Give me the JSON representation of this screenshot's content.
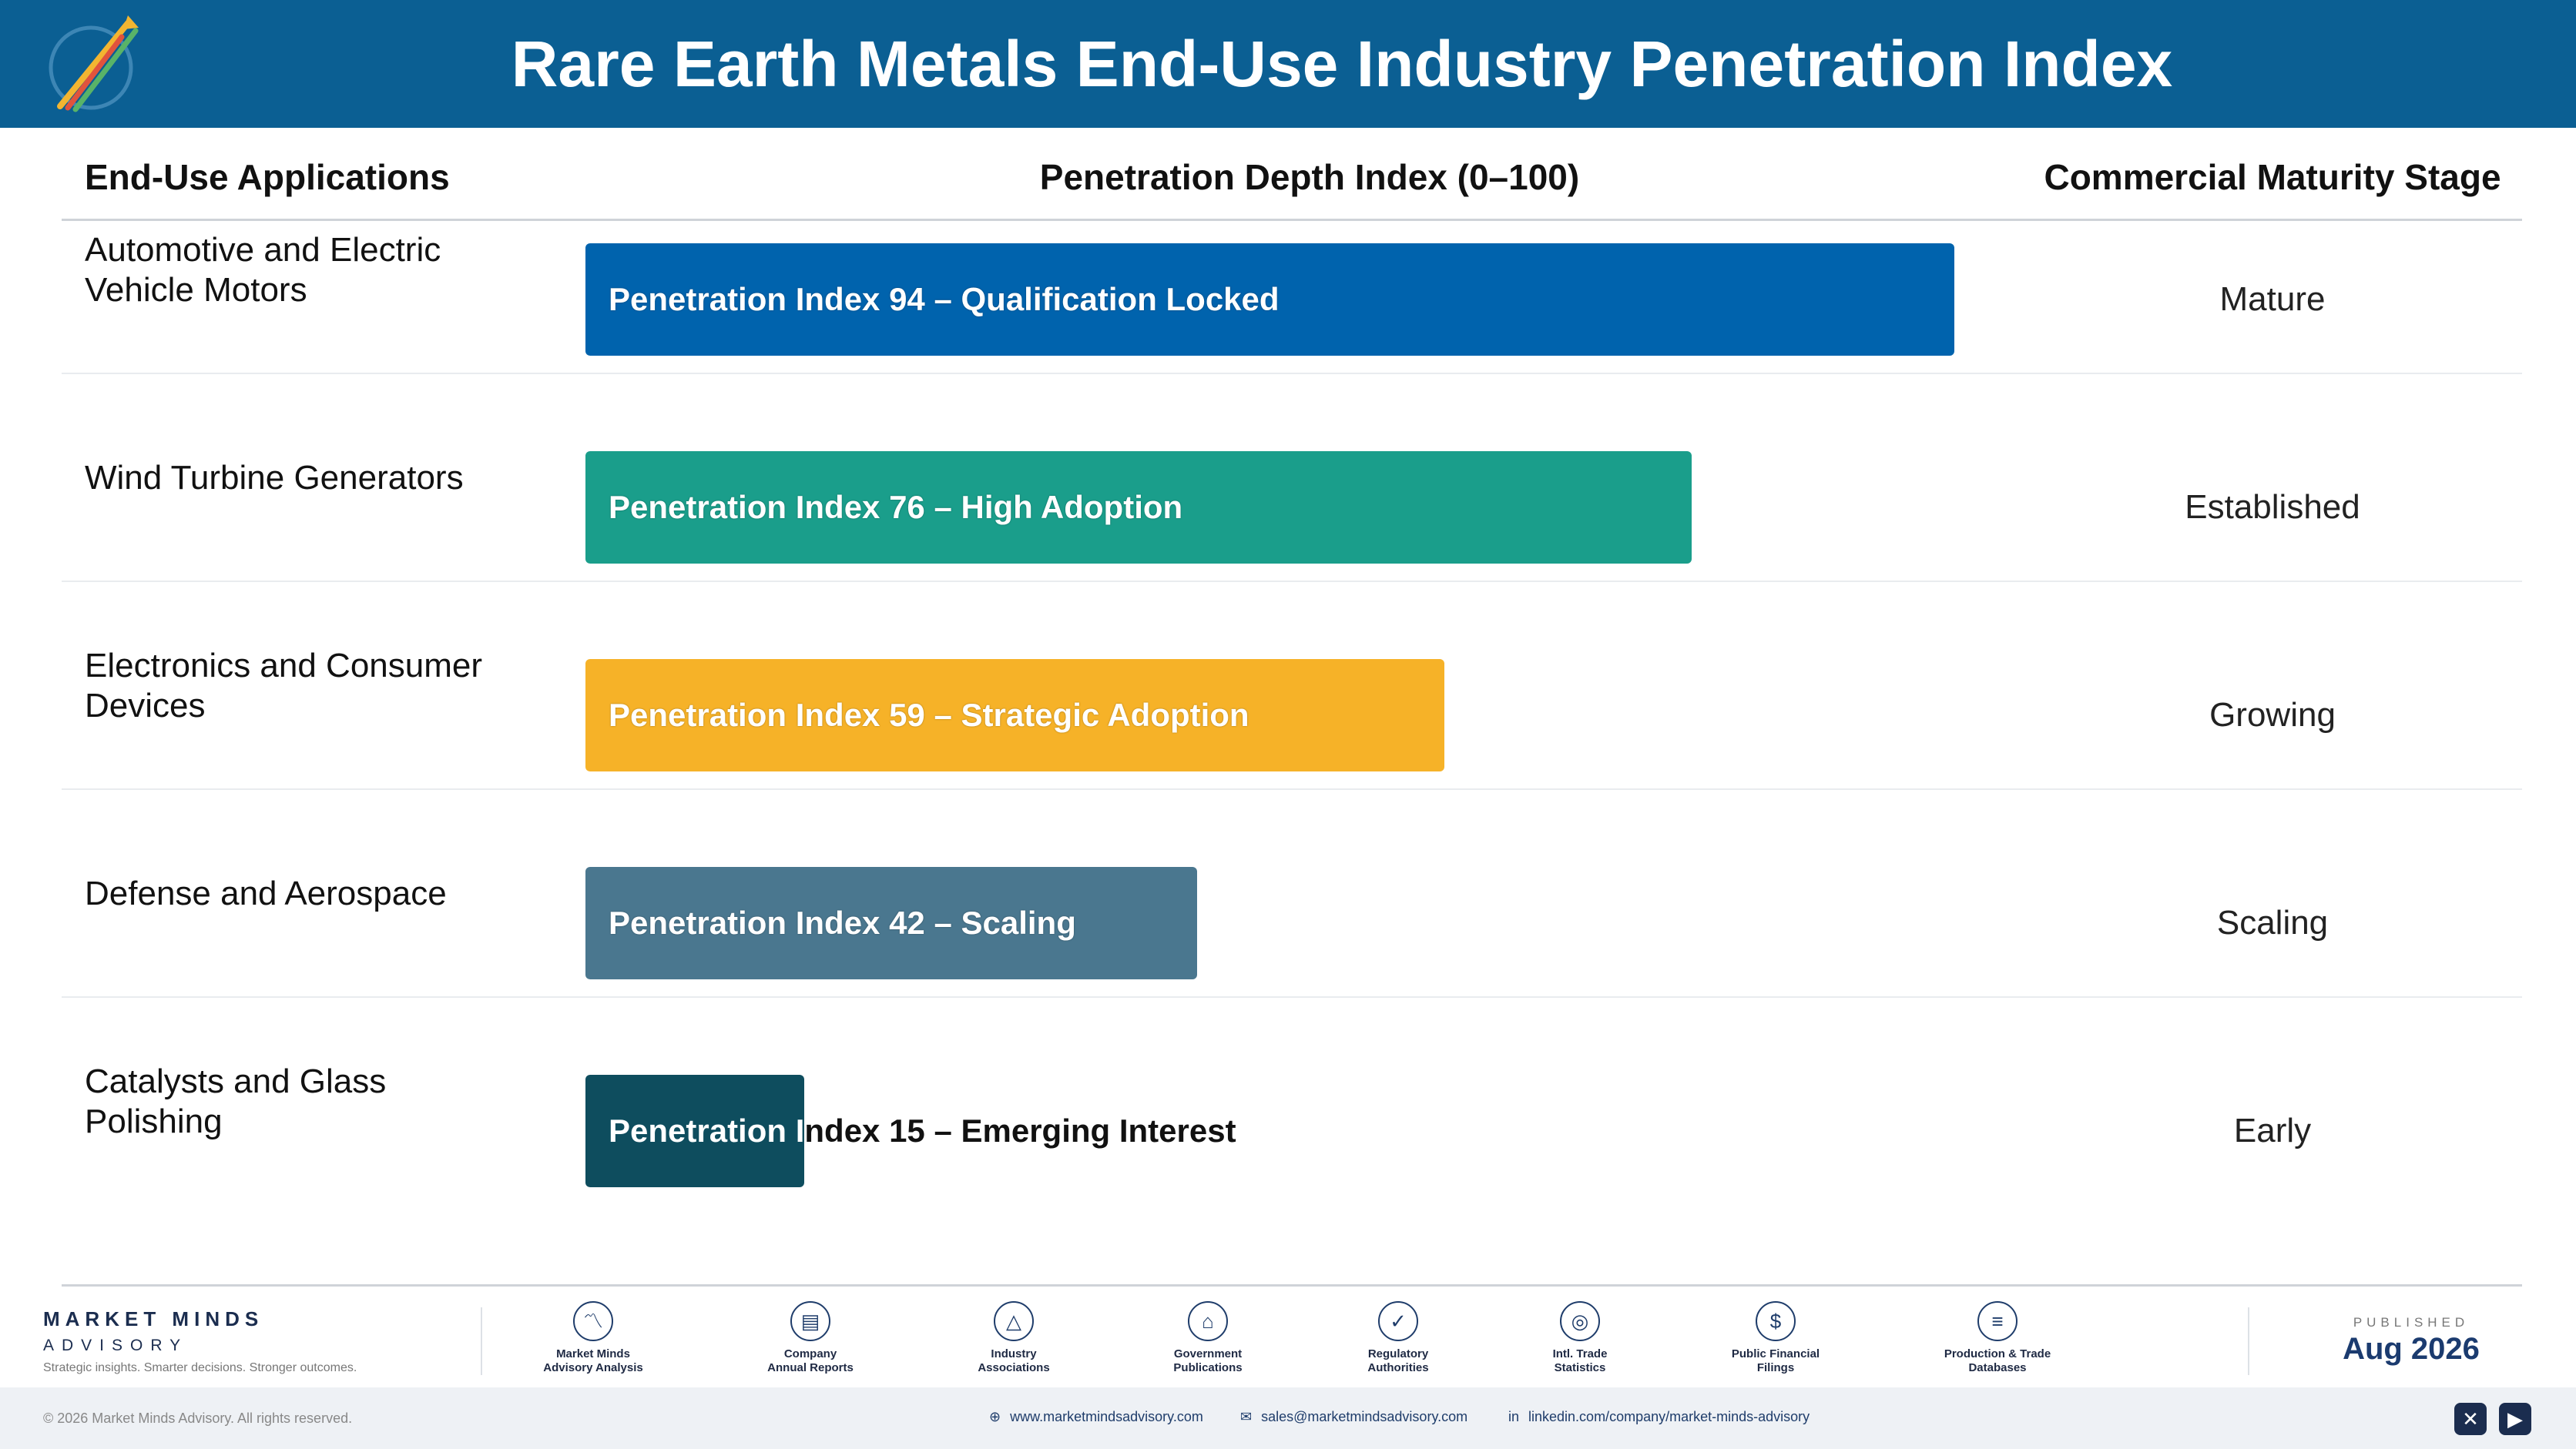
{
  "header": {
    "title": "Rare Earth Metals End-Use Industry Penetration Index"
  },
  "columns": {
    "applications": "End-Use Applications",
    "index": "Penetration Depth Index (0–100)",
    "stage": "Commercial Maturity Stage"
  },
  "chart_data": {
    "type": "bar",
    "orientation": "horizontal",
    "title": "Rare Earth Metals End-Use Industry Penetration Index",
    "xlabel": "Penetration Depth Index (0–100)",
    "xlim": [
      0,
      100
    ],
    "categories": [
      "Automotive and Electric Vehicle Motors",
      "Wind Turbine Generators",
      "Electronics and Consumer Devices",
      "Defense and Aerospace",
      "Catalysts and Glass Polishing"
    ],
    "values": [
      94,
      76,
      59,
      42,
      15
    ],
    "rows": [
      {
        "app": "Automotive and Electric Vehicle Motors",
        "value": 94,
        "label": "Penetration Index 94 – Qualification Locked",
        "stage": "Mature",
        "color": "#0063ad",
        "label_dark": false
      },
      {
        "app": "Wind Turbine Generators",
        "value": 76,
        "label": "Penetration Index 76 – High Adoption",
        "stage": "Established",
        "color": "#1a9e8b",
        "label_dark": false
      },
      {
        "app": "Electronics and Consumer Devices",
        "value": 59,
        "label": "Penetration Index 59 – Strategic Adoption",
        "stage": "Growing",
        "color": "#f6b228",
        "label_dark": false
      },
      {
        "app": "Defense and Aerospace",
        "value": 42,
        "label": "Penetration Index 42 – Scaling",
        "stage": "Scaling",
        "color": "#4a778f",
        "label_dark": false
      },
      {
        "app": "Catalysts and Glass Polishing",
        "value": 15,
        "label": "Penetration Index 15 – Emerging Interest",
        "stage": "Early",
        "color": "#0e4d5e",
        "label_dark": true
      }
    ]
  },
  "footer": {
    "brand_name": "MARKET MINDS",
    "brand_sub": "ADVISORY",
    "tagline": "Strategic insights. Smarter decisions. Stronger outcomes.",
    "sources": [
      {
        "line1": "Market Minds",
        "line2": "Advisory Analysis",
        "icon": "chart-line-icon",
        "glyph": "〽"
      },
      {
        "line1": "Company",
        "line2": "Annual Reports",
        "icon": "document-icon",
        "glyph": "▤"
      },
      {
        "line1": "Industry",
        "line2": "Associations",
        "icon": "network-icon",
        "glyph": "△"
      },
      {
        "line1": "Government",
        "line2": "Publications",
        "icon": "government-building-icon",
        "glyph": "⌂"
      },
      {
        "line1": "Regulatory",
        "line2": "Authorities",
        "icon": "shield-check-icon",
        "glyph": "✓"
      },
      {
        "line1": "Intl. Trade",
        "line2": "Statistics",
        "icon": "globe-icon",
        "glyph": "◎"
      },
      {
        "line1": "Public Financial",
        "line2": "Filings",
        "icon": "dollar-coin-icon",
        "glyph": "$"
      },
      {
        "line1": "Production & Trade",
        "line2": "Databases",
        "icon": "database-icon",
        "glyph": "≡"
      }
    ],
    "published_label": "PUBLISHED",
    "published_date": "Aug 2026",
    "copyright": "© 2026 Market Minds Advisory. All rights reserved.",
    "website": "www.marketmindsadvisory.com",
    "email": "sales@marketmindsadvisory.com",
    "linkedin": "linkedin.com/company/market-minds-advisory",
    "social": [
      {
        "icon": "x-social-icon",
        "glyph": "✕"
      },
      {
        "icon": "youtube-icon",
        "glyph": "▶"
      }
    ]
  }
}
